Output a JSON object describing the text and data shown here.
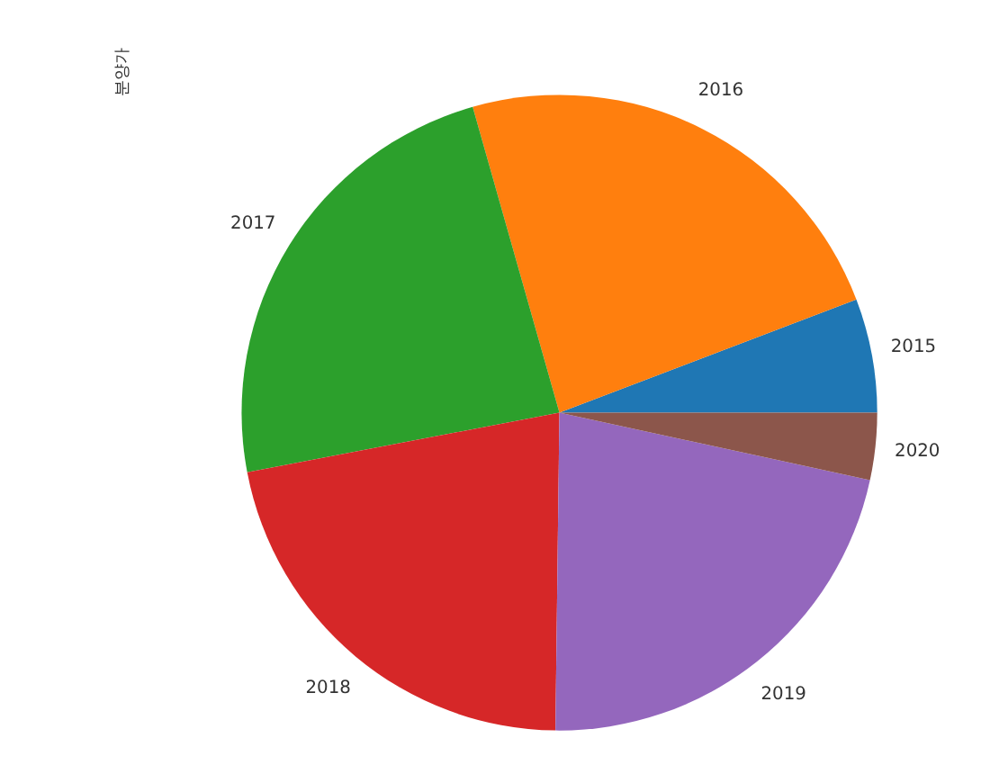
{
  "chart_data": {
    "type": "pie",
    "ylabel": "분양가",
    "categories": [
      "2015",
      "2016",
      "2017",
      "2018",
      "2019",
      "2020"
    ],
    "values": [
      5.8,
      23.6,
      23.6,
      21.8,
      21.8,
      3.4
    ],
    "colors": [
      "#1f77b4",
      "#ff7f0e",
      "#2ca02c",
      "#d62728",
      "#9467bd",
      "#8c564b"
    ],
    "legend": false
  }
}
